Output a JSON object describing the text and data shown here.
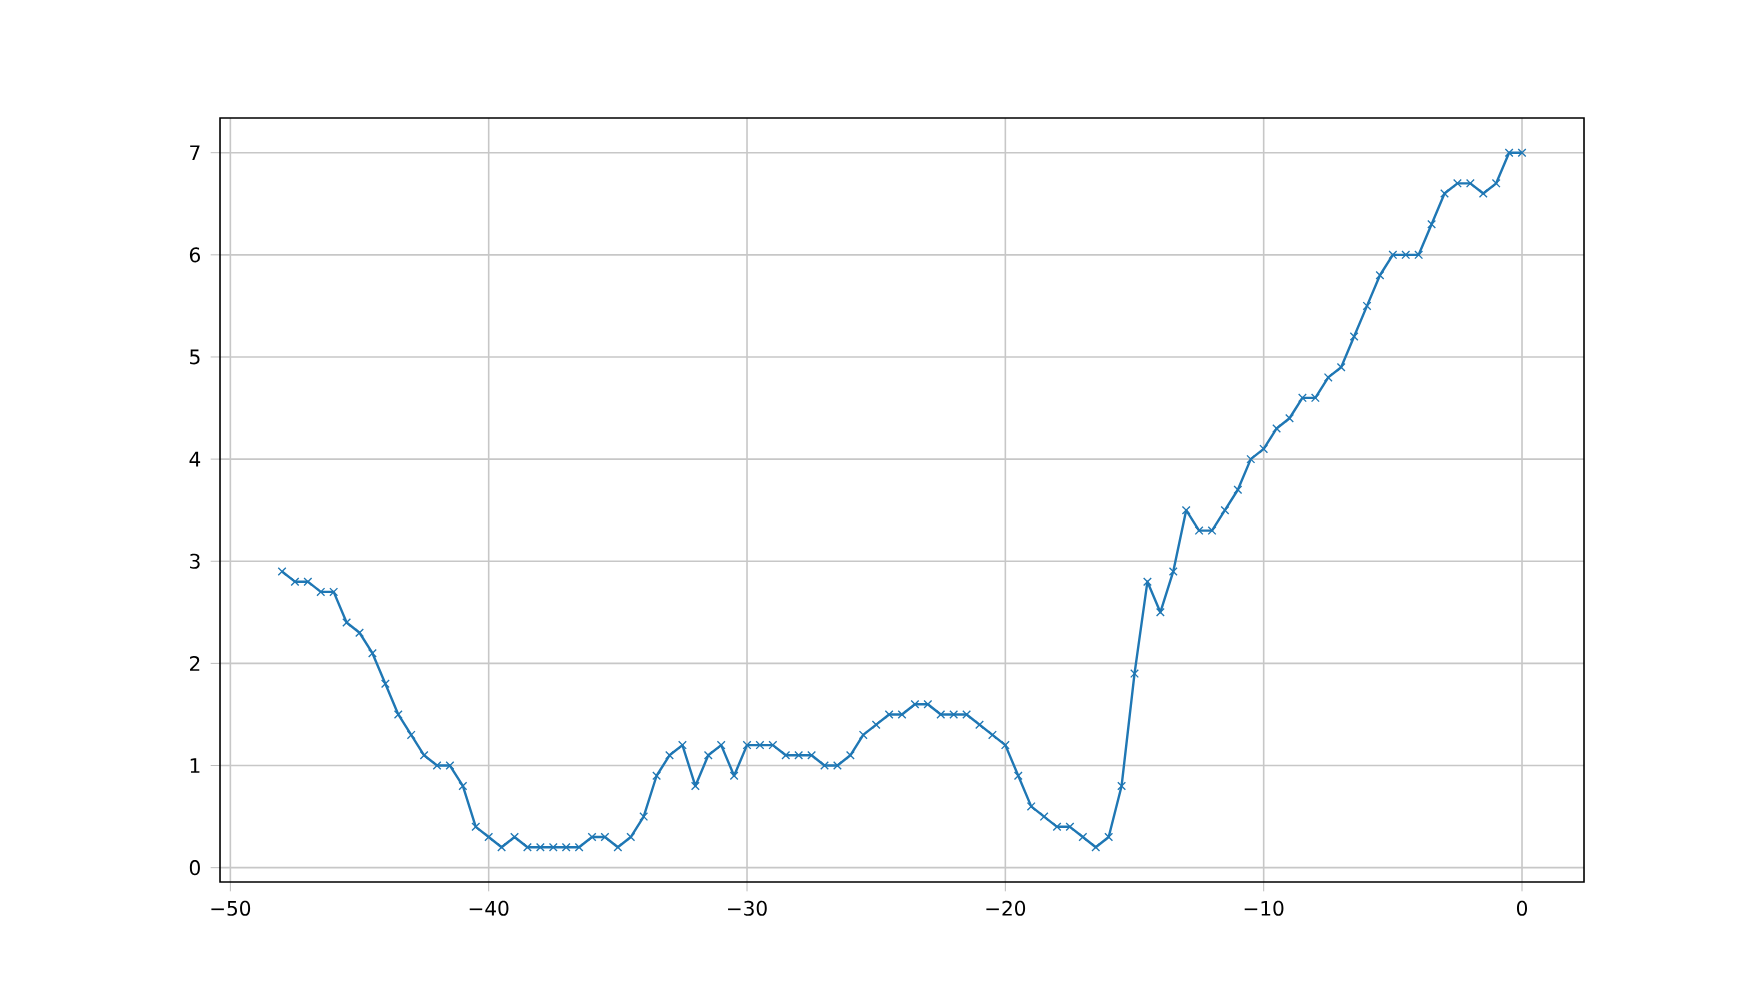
{
  "chart_data": {
    "type": "line",
    "x": [
      -48,
      -47.5,
      -47,
      -46.5,
      -46,
      -45.5,
      -45,
      -44.5,
      -44,
      -43.5,
      -43,
      -42.5,
      -42,
      -41.5,
      -41,
      -40.5,
      -40,
      -39.5,
      -39,
      -38.5,
      -38,
      -37.5,
      -37,
      -36.5,
      -36,
      -35.5,
      -35,
      -34.5,
      -34,
      -33.5,
      -33,
      -32.5,
      -32,
      -31.5,
      -31,
      -30.5,
      -30,
      -29.5,
      -29,
      -28.5,
      -28,
      -27.5,
      -27,
      -26.5,
      -26,
      -25.5,
      -25,
      -24.5,
      -24,
      -23.5,
      -23,
      -22.5,
      -22,
      -21.5,
      -21,
      -20.5,
      -20,
      -19.5,
      -19,
      -18.5,
      -18,
      -17.5,
      -17,
      -16.5,
      -16,
      -15.5,
      -15,
      -14.5,
      -14,
      -13.5,
      -13,
      -12.5,
      -12,
      -11.5,
      -11,
      -10.5,
      -10,
      -9.5,
      -9,
      -8.5,
      -8,
      -7.5,
      -7,
      -6.5,
      -6,
      -5.5,
      -5,
      -4.5,
      -4,
      -3.5,
      -3,
      -2.5,
      -2,
      -1.5,
      -1,
      -0.5,
      0
    ],
    "series": [
      {
        "color": "#1f77b4",
        "values": [
          2.9,
          2.8,
          2.8,
          2.7,
          2.7,
          2.4,
          2.3,
          2.1,
          1.8,
          1.5,
          1.3,
          1.1,
          1.0,
          1.0,
          0.8,
          0.4,
          0.3,
          0.2,
          0.3,
          0.2,
          0.2,
          0.2,
          0.2,
          0.2,
          0.3,
          0.3,
          0.2,
          0.3,
          0.5,
          0.9,
          1.1,
          1.2,
          0.8,
          1.1,
          1.2,
          0.9,
          1.2,
          1.2,
          1.2,
          1.1,
          1.1,
          1.1,
          1.0,
          1.0,
          1.1,
          1.3,
          1.4,
          1.5,
          1.5,
          1.6,
          1.6,
          1.5,
          1.5,
          1.5,
          1.4,
          1.3,
          1.2,
          0.9,
          0.6,
          0.5,
          0.4,
          0.4,
          0.3,
          0.2,
          0.3,
          0.8,
          1.9,
          2.8,
          2.5,
          2.9,
          3.5,
          3.3,
          3.3,
          3.5,
          3.7,
          4.0,
          4.1,
          4.3,
          4.4,
          4.6,
          4.6,
          4.8,
          4.9,
          5.2,
          5.5,
          5.8,
          6.0,
          6.0,
          6.0,
          6.3,
          6.6,
          6.7,
          6.7,
          6.6,
          6.7,
          7.0,
          7.0
        ]
      }
    ],
    "xlim": [
      -50.4,
      2.4
    ],
    "ylim": [
      -0.14,
      7.34
    ],
    "xticks": [
      {
        "value": -50,
        "label": "−50"
      },
      {
        "value": -40,
        "label": "−40"
      },
      {
        "value": -30,
        "label": "−30"
      },
      {
        "value": -20,
        "label": "−20"
      },
      {
        "value": -10,
        "label": "−10"
      },
      0
    ],
    "yticks": [
      0,
      1,
      2,
      3,
      4,
      5,
      6,
      7
    ],
    "grid": true,
    "marker": "cross",
    "line_style": "solid"
  }
}
